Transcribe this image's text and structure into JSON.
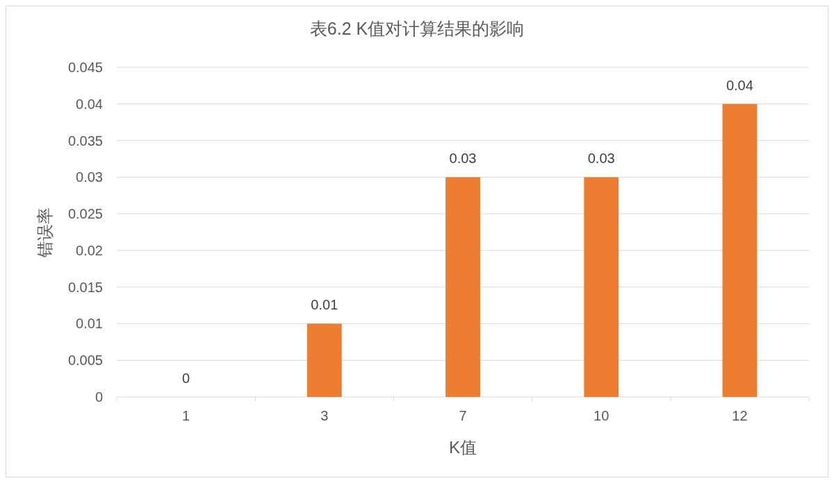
{
  "chart_data": {
    "type": "bar",
    "title": "表6.2 K值对计算结果的影响",
    "xlabel": "K值",
    "ylabel": "错误率",
    "categories": [
      "1",
      "3",
      "7",
      "10",
      "12"
    ],
    "values": [
      0,
      0.01,
      0.03,
      0.03,
      0.04
    ],
    "color": "#ed7d31",
    "ylim": [
      0,
      0.045
    ],
    "yticks": [
      0,
      0.005,
      0.01,
      0.015,
      0.02,
      0.025,
      0.03,
      0.035,
      0.04,
      0.045
    ],
    "grid": "y",
    "data_labels": true
  }
}
